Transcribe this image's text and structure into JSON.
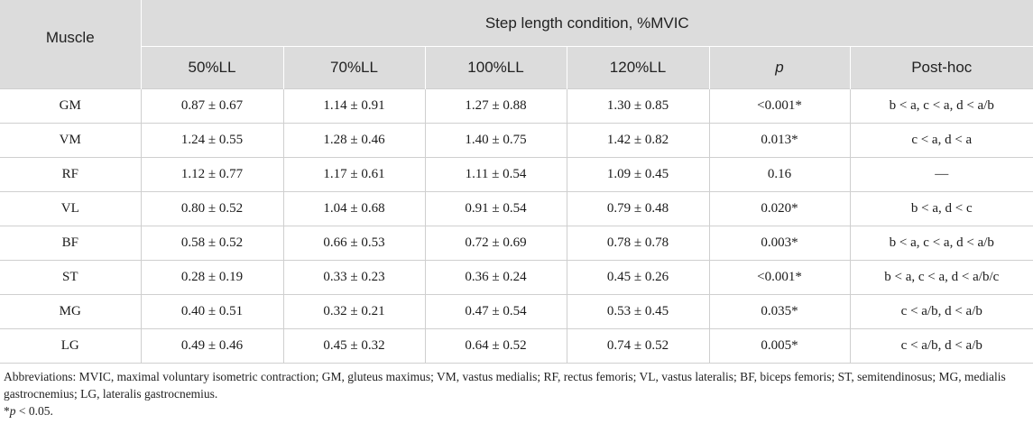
{
  "table": {
    "group_header": "Step length condition, %MVIC",
    "columns": [
      "Muscle",
      "50%LL",
      "70%LL",
      "100%LL",
      "120%LL",
      "p",
      "Post-hoc"
    ],
    "rows": [
      {
        "muscle": "GM",
        "ll50": "0.87 ± 0.67",
        "ll70": "1.14 ± 0.91",
        "ll100": "1.27 ± 0.88",
        "ll120": "1.30 ± 0.85",
        "p": "<0.001*",
        "posthoc": "b < a, c < a, d < a/b"
      },
      {
        "muscle": "VM",
        "ll50": "1.24 ± 0.55",
        "ll70": "1.28 ± 0.46",
        "ll100": "1.40 ± 0.75",
        "ll120": "1.42 ± 0.82",
        "p": "0.013*",
        "posthoc": "c < a, d < a"
      },
      {
        "muscle": "RF",
        "ll50": "1.12 ± 0.77",
        "ll70": "1.17 ± 0.61",
        "ll100": "1.11 ± 0.54",
        "ll120": "1.09 ± 0.45",
        "p": "0.16",
        "posthoc": "—"
      },
      {
        "muscle": "VL",
        "ll50": "0.80 ± 0.52",
        "ll70": "1.04 ± 0.68",
        "ll100": "0.91 ± 0.54",
        "ll120": "0.79 ± 0.48",
        "p": "0.020*",
        "posthoc": "b < a, d < c"
      },
      {
        "muscle": "BF",
        "ll50": "0.58 ± 0.52",
        "ll70": "0.66 ± 0.53",
        "ll100": "0.72 ± 0.69",
        "ll120": "0.78 ± 0.78",
        "p": "0.003*",
        "posthoc": "b < a, c < a, d < a/b"
      },
      {
        "muscle": "ST",
        "ll50": "0.28 ± 0.19",
        "ll70": "0.33 ± 0.23",
        "ll100": "0.36 ± 0.24",
        "ll120": "0.45 ± 0.26",
        "p": "<0.001*",
        "posthoc": "b < a, c < a, d < a/b/c"
      },
      {
        "muscle": "MG",
        "ll50": "0.40 ± 0.51",
        "ll70": "0.32 ± 0.21",
        "ll100": "0.47 ± 0.54",
        "ll120": "0.53 ± 0.45",
        "p": "0.035*",
        "posthoc": "c < a/b, d < a/b"
      },
      {
        "muscle": "LG",
        "ll50": "0.49 ± 0.46",
        "ll70": "0.45 ± 0.32",
        "ll100": "0.64 ± 0.52",
        "ll120": "0.74 ± 0.52",
        "p": "0.005*",
        "posthoc": "c < a/b, d < a/b"
      }
    ]
  },
  "footnotes": {
    "abbreviations": "Abbreviations: MVIC, maximal voluntary isometric contraction; GM, gluteus maximus; VM, vastus medialis; RF, rectus femoris; VL, vastus lateralis; BF, biceps femoris; ST, semitendinosus; MG, medialis gastrocnemius; LG, lateralis gastrocnemius.",
    "significance_star": "*",
    "significance_p": "p",
    "significance_rest": " < 0.05."
  }
}
